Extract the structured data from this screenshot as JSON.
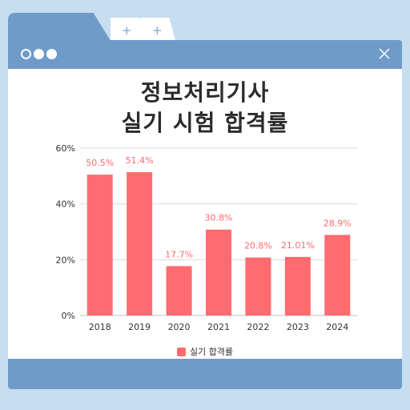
{
  "tabs": [
    {
      "label": ""
    },
    {
      "label": "+"
    },
    {
      "label": "+"
    }
  ],
  "window": {
    "dots": [
      "hollow",
      "filled",
      "filled"
    ],
    "close_icon": "close-icon"
  },
  "colors": {
    "background": "#c7ddf0",
    "frame": "#6f9bc8",
    "bar": "#ff6b6e",
    "bar_label": "#ff6b6e"
  },
  "chart_data": {
    "type": "bar",
    "title": "정보처리기사",
    "subtitle": "실기 시험 합격률",
    "categories": [
      "2018",
      "2019",
      "2020",
      "2021",
      "2022",
      "2023",
      "2024"
    ],
    "series": [
      {
        "name": "실기 합격률",
        "values": [
          50.5,
          51.4,
          17.7,
          30.8,
          20.8,
          21.01,
          28.9
        ],
        "labels": [
          "50.5%",
          "51.4%",
          "17.7%",
          "30.8%",
          "20.8%",
          "21.01%",
          "28.9%"
        ]
      }
    ],
    "ylim": [
      0,
      60
    ],
    "yticks": [
      0,
      20,
      40,
      60
    ],
    "ytick_labels": [
      "0%",
      "20%",
      "40%",
      "60%"
    ],
    "xlabel": "",
    "ylabel": "",
    "grid": true,
    "legend": "bottom-center"
  }
}
